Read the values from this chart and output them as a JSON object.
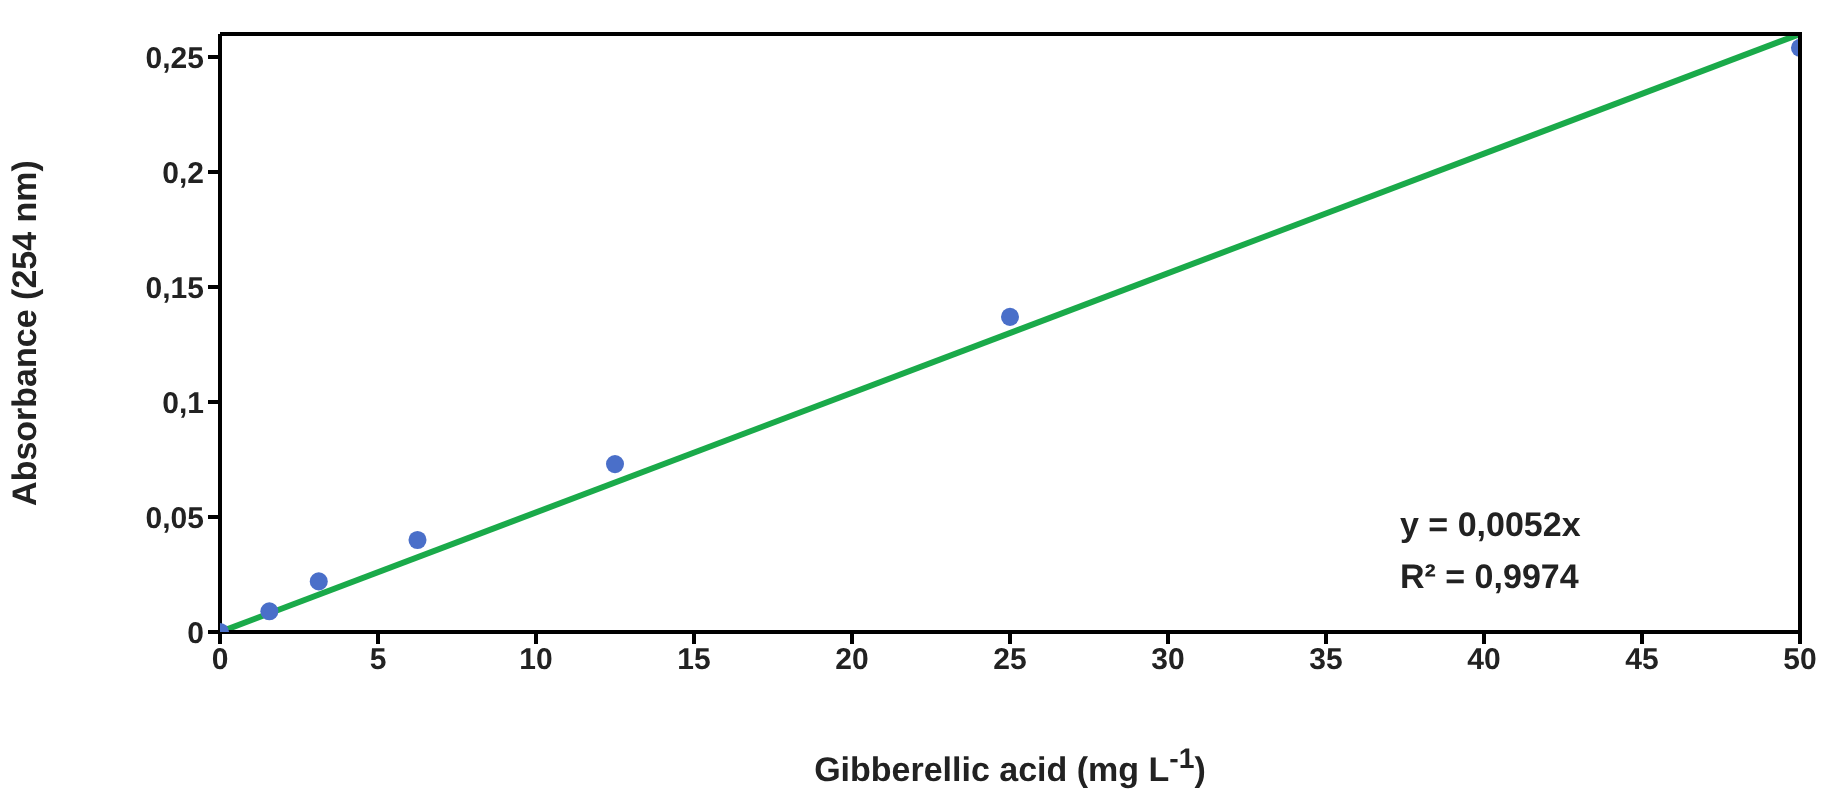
{
  "chart_data": {
    "type": "scatter",
    "xlabel": "Gibberellic acid (mg L$^{-1}$)",
    "ylabel": "Absorbance (254 nm)",
    "xlim": [
      0,
      50
    ],
    "xticks": [
      0,
      5,
      10,
      15,
      20,
      25,
      30,
      35,
      40,
      45,
      50
    ],
    "ylim": [
      0,
      0.26
    ],
    "yticks": [
      0,
      {
        "value": 0.05,
        "label": "0,05"
      },
      {
        "value": 0.1,
        "label": "0,1"
      },
      {
        "value": 0.15,
        "label": "0,15"
      },
      {
        "value": 0.2,
        "label": "0,2"
      },
      {
        "value": 0.25,
        "label": "0,25"
      }
    ],
    "series": [
      {
        "color": "#4a6fc9",
        "marker": "circle",
        "x": [
          0,
          1.5625,
          3.125,
          6.25,
          12.5,
          25,
          50
        ],
        "values": [
          0,
          0.009,
          0.022,
          0.04,
          0.073,
          0.137,
          0.254
        ]
      },
      {
        "type": "line",
        "color": "#1aaa4a",
        "marker": "none",
        "x": [
          0,
          50
        ],
        "values": [
          0,
          0.26
        ]
      }
    ],
    "annotations": [
      "y = 0,0052x",
      "R² = 0,9974"
    ]
  }
}
